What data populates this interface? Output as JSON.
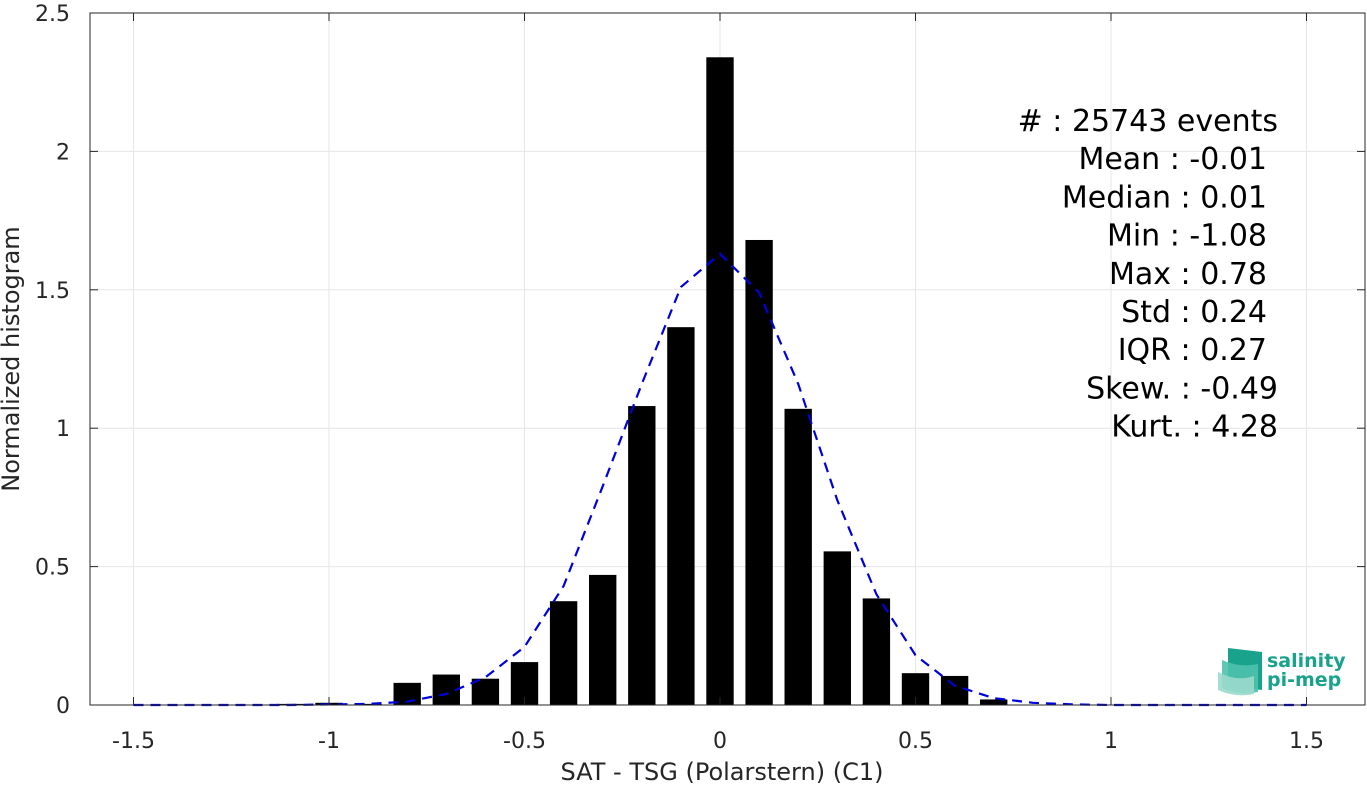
{
  "chart_data": {
    "type": "bar",
    "xlabel": "SAT - TSG (Polarstern) (C1)",
    "ylabel": "Normalized histogram",
    "xlim": [
      -1.6,
      1.6
    ],
    "ylim": [
      0,
      2.5
    ],
    "xticks": [
      -1.5,
      -1,
      -0.5,
      0,
      0.5,
      1,
      1.5
    ],
    "xtick_labels": [
      "-1.5",
      "-1",
      "-0.5",
      "0",
      "0.5",
      "1",
      "1.5"
    ],
    "yticks": [
      0,
      0.5,
      1,
      1.5,
      2,
      2.5
    ],
    "ytick_labels": [
      "0",
      "0.5",
      "1",
      "1.5",
      "2",
      "2.5"
    ],
    "grid": true,
    "bar_width": 0.07,
    "bar_color": "#000000",
    "bars": [
      {
        "x": -1.1,
        "y": 0.004
      },
      {
        "x": -1.0,
        "y": 0.008
      },
      {
        "x": -0.9,
        "y": 0.004
      },
      {
        "x": -0.8,
        "y": 0.08
      },
      {
        "x": -0.7,
        "y": 0.11
      },
      {
        "x": -0.6,
        "y": 0.095
      },
      {
        "x": -0.5,
        "y": 0.155
      },
      {
        "x": -0.4,
        "y": 0.375
      },
      {
        "x": -0.3,
        "y": 0.47
      },
      {
        "x": -0.2,
        "y": 1.08
      },
      {
        "x": -0.1,
        "y": 1.365
      },
      {
        "x": 0.0,
        "y": 2.34
      },
      {
        "x": 0.1,
        "y": 1.68
      },
      {
        "x": 0.2,
        "y": 1.07
      },
      {
        "x": 0.3,
        "y": 0.555
      },
      {
        "x": 0.4,
        "y": 0.385
      },
      {
        "x": 0.5,
        "y": 0.115
      },
      {
        "x": 0.6,
        "y": 0.105
      },
      {
        "x": 0.7,
        "y": 0.02
      }
    ],
    "fit_curve": {
      "color": "#0000dd",
      "style": "dashed",
      "points": [
        [
          -1.5,
          0.0
        ],
        [
          -1.3,
          0.0
        ],
        [
          -1.1,
          0.0
        ],
        [
          -1.0,
          0.002
        ],
        [
          -0.9,
          0.004
        ],
        [
          -0.8,
          0.012
        ],
        [
          -0.7,
          0.04
        ],
        [
          -0.6,
          0.1
        ],
        [
          -0.5,
          0.21
        ],
        [
          -0.4,
          0.43
        ],
        [
          -0.3,
          0.79
        ],
        [
          -0.2,
          1.16
        ],
        [
          -0.1,
          1.51
        ],
        [
          0.0,
          1.63
        ],
        [
          0.1,
          1.49
        ],
        [
          0.2,
          1.16
        ],
        [
          0.3,
          0.74
        ],
        [
          0.4,
          0.4
        ],
        [
          0.5,
          0.18
        ],
        [
          0.6,
          0.07
        ],
        [
          0.7,
          0.025
        ],
        [
          0.8,
          0.008
        ],
        [
          0.9,
          0.002
        ],
        [
          1.0,
          0.0
        ],
        [
          1.2,
          0.0
        ],
        [
          1.5,
          0.0
        ]
      ]
    },
    "stats": [
      {
        "text": "#  : 25743 events",
        "x_end": 1278
      },
      {
        "text": "Mean : -0.01",
        "x_end": 1267
      },
      {
        "text": "Median : 0.01",
        "x_end": 1267
      },
      {
        "text": "Min : -1.08",
        "x_end": 1267
      },
      {
        "text": "Max : 0.78",
        "x_end": 1267
      },
      {
        "text": "Std : 0.24",
        "x_end": 1267
      },
      {
        "text": "IQR : 0.27",
        "x_end": 1267
      },
      {
        "text": "Skew. : -0.49",
        "x_end": 1278
      },
      {
        "text": "Kurt. : 4.28",
        "x_end": 1278
      }
    ]
  },
  "logo": {
    "line1": "salinity",
    "line2": "pi-mep",
    "color": "#1aa38c"
  }
}
